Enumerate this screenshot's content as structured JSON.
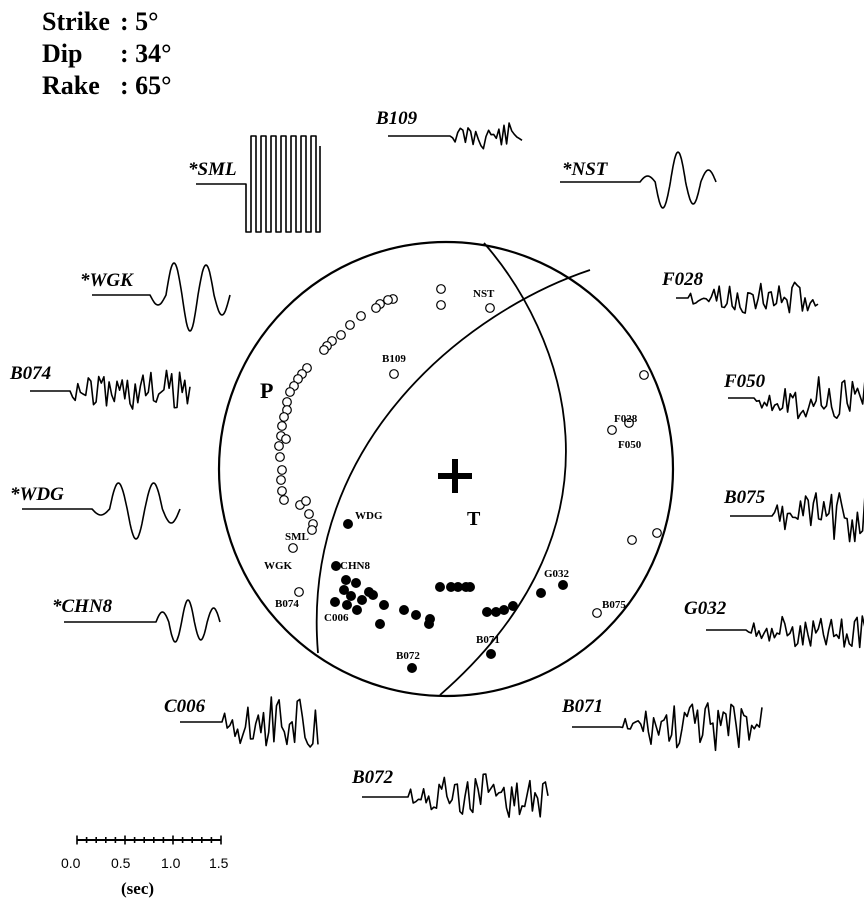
{
  "mechanism": {
    "strike": {
      "label": "Strike",
      "value": ": 5°"
    },
    "dip": {
      "label": "Dip",
      "value": ": 34°"
    },
    "rake": {
      "label": "Rake",
      "value": ": 65°"
    }
  },
  "axes": {
    "p_label": "P",
    "t_label": "T"
  },
  "waveforms": [
    {
      "id": "B109",
      "label": "B109",
      "type": "noisy"
    },
    {
      "id": "NST",
      "label": "*NST",
      "type": "smooth"
    },
    {
      "id": "SML",
      "label": "*SML",
      "type": "square"
    },
    {
      "id": "F028",
      "label": "F028",
      "type": "noisy"
    },
    {
      "id": "WGK",
      "label": "*WGK",
      "type": "smooth"
    },
    {
      "id": "F050",
      "label": "F050",
      "type": "noisy"
    },
    {
      "id": "B074",
      "label": "B074",
      "type": "noisy"
    },
    {
      "id": "B075",
      "label": "B075",
      "type": "noisy"
    },
    {
      "id": "WDG",
      "label": "*WDG",
      "type": "smooth"
    },
    {
      "id": "G032",
      "label": "G032",
      "type": "noisy"
    },
    {
      "id": "CHN8",
      "label": "*CHN8",
      "type": "smooth"
    },
    {
      "id": "C006",
      "label": "C006",
      "type": "noisy"
    },
    {
      "id": "B071",
      "label": "B071",
      "type": "noisy"
    },
    {
      "id": "B072",
      "label": "B072",
      "type": "noisy"
    }
  ],
  "station_labels": [
    "NST",
    "B109",
    "F028",
    "F050",
    "WDG",
    "SML",
    "CHN8",
    "WGK",
    "G032",
    "B074",
    "C006",
    "B075",
    "B071",
    "B072"
  ],
  "scale_bar": {
    "ticks": [
      "0.0",
      "0.5",
      "1.0",
      "1.5"
    ],
    "unit": "(sec)"
  }
}
